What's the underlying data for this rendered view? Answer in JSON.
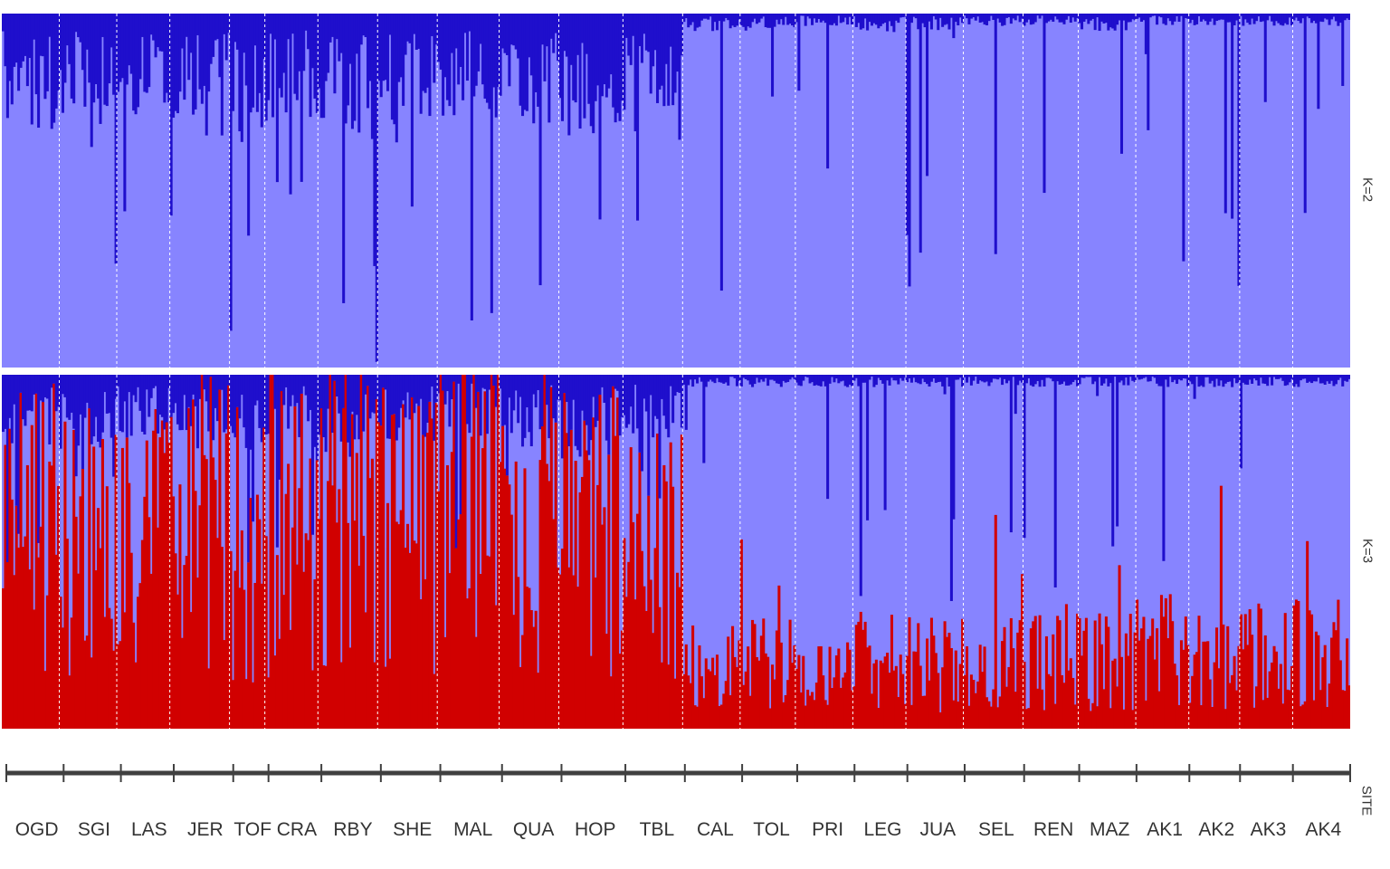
{
  "chart_data": {
    "type": "bar",
    "stacked": true,
    "xlabel": "SITE",
    "panels": [
      {
        "label": "K=2",
        "components": [
          "dark blue",
          "light blue"
        ]
      },
      {
        "label": "K=3",
        "components": [
          "red",
          "dark blue",
          "light blue"
        ]
      }
    ],
    "colors": {
      "dark_blue": "#1f0fcc",
      "light_blue": "#8784ff",
      "red": "#d10000",
      "divider": "#ffffff"
    },
    "ylim": [
      0,
      1
    ],
    "grid": false,
    "sites": [
      {
        "name": "OGD",
        "n": 26,
        "k2_dark": 0.2,
        "k3_red": 0.58,
        "k3_dark": 0.12
      },
      {
        "name": "SGI",
        "n": 26,
        "k2_dark": 0.18,
        "k3_red": 0.52,
        "k3_dark": 0.12
      },
      {
        "name": "LAS",
        "n": 24,
        "k2_dark": 0.17,
        "k3_red": 0.56,
        "k3_dark": 0.12
      },
      {
        "name": "JER",
        "n": 27,
        "k2_dark": 0.2,
        "k3_red": 0.6,
        "k3_dark": 0.13
      },
      {
        "name": "TOF",
        "n": 16,
        "k2_dark": 0.21,
        "k3_red": 0.52,
        "k3_dark": 0.14
      },
      {
        "name": "CRA",
        "n": 24,
        "k2_dark": 0.19,
        "k3_red": 0.56,
        "k3_dark": 0.12
      },
      {
        "name": "RBY",
        "n": 27,
        "k2_dark": 0.22,
        "k3_red": 0.58,
        "k3_dark": 0.14
      },
      {
        "name": "SHE",
        "n": 27,
        "k2_dark": 0.18,
        "k3_red": 0.58,
        "k3_dark": 0.12
      },
      {
        "name": "MAL",
        "n": 28,
        "k2_dark": 0.17,
        "k3_red": 0.66,
        "k3_dark": 0.1
      },
      {
        "name": "QUA",
        "n": 27,
        "k2_dark": 0.18,
        "k3_red": 0.58,
        "k3_dark": 0.12
      },
      {
        "name": "HOP",
        "n": 29,
        "k2_dark": 0.2,
        "k3_red": 0.56,
        "k3_dark": 0.14
      },
      {
        "name": "TBL",
        "n": 27,
        "k2_dark": 0.16,
        "k3_red": 0.5,
        "k3_dark": 0.11
      },
      {
        "name": "CAL",
        "n": 26,
        "k2_dark": 0.03,
        "k3_red": 0.17,
        "k3_dark": 0.02
      },
      {
        "name": "TOL",
        "n": 25,
        "k2_dark": 0.03,
        "k3_red": 0.18,
        "k3_dark": 0.02
      },
      {
        "name": "PRI",
        "n": 26,
        "k2_dark": 0.02,
        "k3_red": 0.16,
        "k3_dark": 0.02
      },
      {
        "name": "LEG",
        "n": 24,
        "k2_dark": 0.03,
        "k3_red": 0.19,
        "k3_dark": 0.02
      },
      {
        "name": "JUA",
        "n": 26,
        "k2_dark": 0.03,
        "k3_red": 0.18,
        "k3_dark": 0.02
      },
      {
        "name": "SEL",
        "n": 27,
        "k2_dark": 0.02,
        "k3_red": 0.18,
        "k3_dark": 0.02
      },
      {
        "name": "REN",
        "n": 25,
        "k2_dark": 0.02,
        "k3_red": 0.19,
        "k3_dark": 0.02
      },
      {
        "name": "MAZ",
        "n": 26,
        "k2_dark": 0.03,
        "k3_red": 0.2,
        "k3_dark": 0.02
      },
      {
        "name": "AK1",
        "n": 24,
        "k2_dark": 0.02,
        "k3_red": 0.22,
        "k3_dark": 0.02
      },
      {
        "name": "AK2",
        "n": 23,
        "k2_dark": 0.02,
        "k3_red": 0.2,
        "k3_dark": 0.02
      },
      {
        "name": "AK3",
        "n": 24,
        "k2_dark": 0.02,
        "k3_red": 0.21,
        "k3_dark": 0.02
      },
      {
        "name": "AK4",
        "n": 26,
        "k2_dark": 0.02,
        "k3_red": 0.22,
        "k3_dark": 0.02
      }
    ]
  }
}
